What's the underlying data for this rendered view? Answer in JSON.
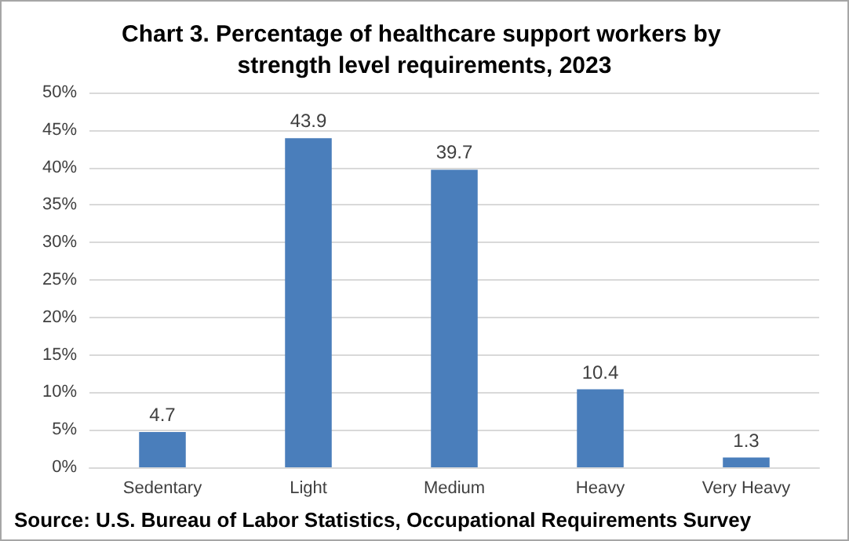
{
  "chart_data": {
    "type": "bar",
    "title": "Chart 3. Percentage of healthcare support workers by strength level requirements, 2023",
    "categories": [
      "Sedentary",
      "Light",
      "Medium",
      "Heavy",
      "Very Heavy"
    ],
    "values": [
      4.7,
      43.9,
      39.7,
      10.4,
      1.3
    ],
    "color": "#4a7ebb",
    "ylim": [
      0,
      50
    ],
    "yticks": [
      {
        "value": 0,
        "label": "0%"
      },
      {
        "value": 5,
        "label": "5%"
      },
      {
        "value": 10,
        "label": "10%"
      },
      {
        "value": 15,
        "label": "15%"
      },
      {
        "value": 20,
        "label": "20%"
      },
      {
        "value": 25,
        "label": "25%"
      },
      {
        "value": 30,
        "label": "30%"
      },
      {
        "value": 35,
        "label": "35%"
      },
      {
        "value": 40,
        "label": "40%"
      },
      {
        "value": 45,
        "label": "45%"
      },
      {
        "value": 50,
        "label": "50%"
      }
    ],
    "grid": true,
    "data_labels": true,
    "annotations": [
      "Source: U.S. Bureau of Labor Statistics, Occupational Requirements Survey"
    ]
  }
}
